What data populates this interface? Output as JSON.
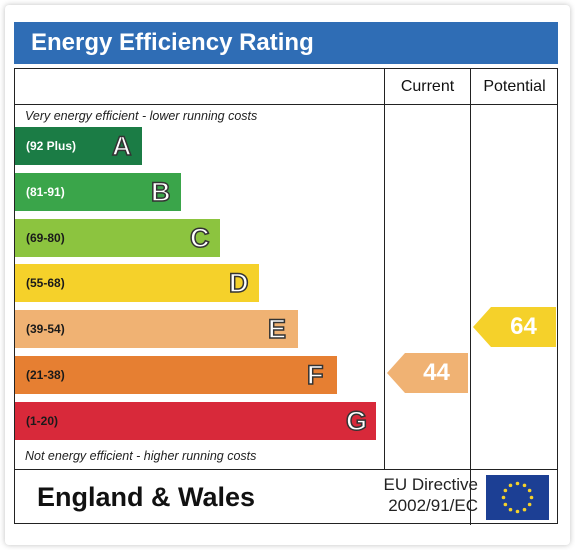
{
  "title": "Energy Efficiency Rating",
  "columns": {
    "current": "Current",
    "potential": "Potential"
  },
  "top_caption": "Very energy efficient - lower running costs",
  "bottom_caption": "Not energy efficient - higher running costs",
  "bands": [
    {
      "range": "(92 Plus)",
      "letter": "A",
      "color": "#1b7c45",
      "text_color": "#ffffff"
    },
    {
      "range": "(81-91)",
      "letter": "B",
      "color": "#3aa54a",
      "text_color": "#ffffff"
    },
    {
      "range": "(69-80)",
      "letter": "C",
      "color": "#8cc43f",
      "text_color": "#1a1a1a"
    },
    {
      "range": "(55-68)",
      "letter": "D",
      "color": "#f5d12a",
      "text_color": "#1a1a1a"
    },
    {
      "range": "(39-54)",
      "letter": "E",
      "color": "#f0b273",
      "text_color": "#1a1a1a"
    },
    {
      "range": "(21-38)",
      "letter": "F",
      "color": "#e67f32",
      "text_color": "#1a1a1a"
    },
    {
      "range": "(1-20)",
      "letter": "G",
      "color": "#d8293a",
      "text_color": "#1a1a1a"
    }
  ],
  "current": {
    "value": "44",
    "color": "#f0b273"
  },
  "potential": {
    "value": "64",
    "color": "#f5d12a"
  },
  "footer": {
    "region": "England & Wales",
    "directive_line1": "EU Directive",
    "directive_line2": "2002/91/EC"
  }
}
